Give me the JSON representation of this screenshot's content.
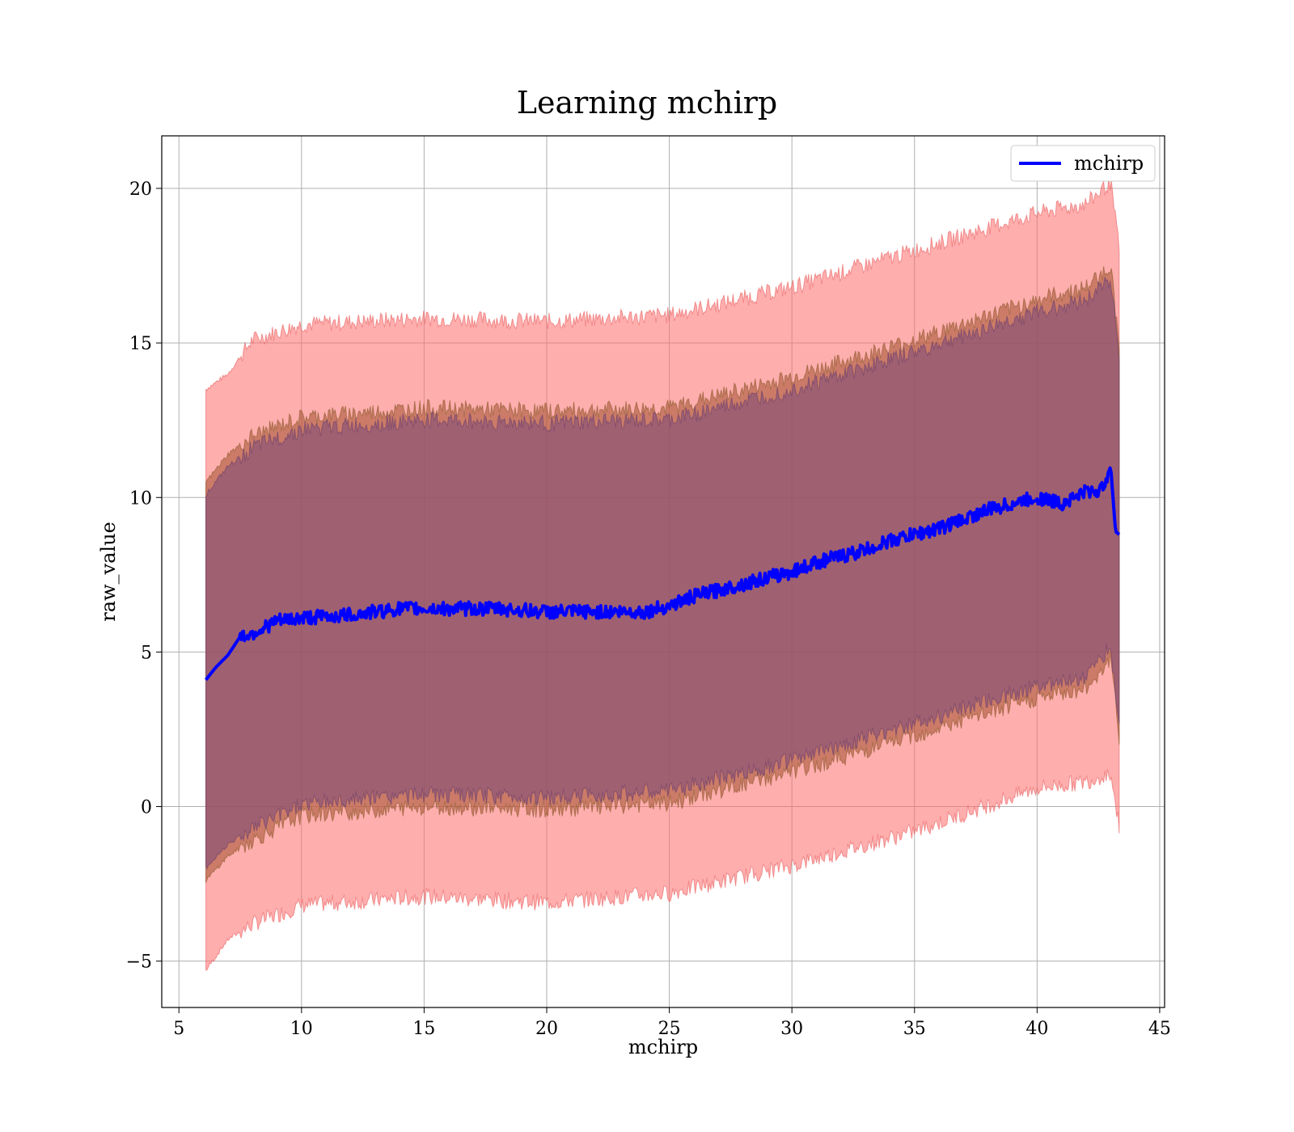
{
  "chart_data": {
    "type": "line",
    "title": "Learning mchirp",
    "xlabel": "mchirp",
    "ylabel": "raw_value",
    "xlim": [
      4.3,
      45.2
    ],
    "ylim": [
      -6.5,
      21.7
    ],
    "xticks": [
      5,
      10,
      15,
      20,
      25,
      30,
      35,
      40,
      45
    ],
    "yticks": [
      -5,
      0,
      5,
      10,
      15,
      20
    ],
    "xtick_labels": [
      "5",
      "10",
      "15",
      "20",
      "25",
      "30",
      "35",
      "40",
      "45"
    ],
    "ytick_labels": [
      "−5",
      "0",
      "5",
      "10",
      "15",
      "20"
    ],
    "grid": true,
    "legend_position": "top-right",
    "colors": {
      "line": "#0000ff",
      "band_outer": "#ff6b6b",
      "band_mid": "#a0522d",
      "band_inner": "#7b4a7b"
    },
    "series": [
      {
        "name": "mchirp",
        "x": [
          6.1,
          6.5,
          7.0,
          7.5,
          8.0,
          9.0,
          10.0,
          12.0,
          14.0,
          16.0,
          18.0,
          20.0,
          22.0,
          24.0,
          25.0,
          26.0,
          27.0,
          28.0,
          29.0,
          30.0,
          31.0,
          32.0,
          33.0,
          34.0,
          35.0,
          36.0,
          37.0,
          38.0,
          39.0,
          40.0,
          41.0,
          42.0,
          42.6,
          43.0,
          43.2,
          43.35
        ],
        "y": [
          4.1,
          4.5,
          4.9,
          5.5,
          5.6,
          6.0,
          6.1,
          6.2,
          6.4,
          6.4,
          6.4,
          6.3,
          6.3,
          6.3,
          6.5,
          6.8,
          7.0,
          7.2,
          7.4,
          7.6,
          7.9,
          8.1,
          8.3,
          8.6,
          8.8,
          9.0,
          9.3,
          9.6,
          9.8,
          10.0,
          9.8,
          10.2,
          10.2,
          11.0,
          8.9,
          8.8
        ]
      }
    ],
    "bands": [
      {
        "x": [
          6.1,
          7.0,
          8.0,
          10.0,
          15.0,
          20.0,
          25.0,
          30.0,
          35.0,
          40.0,
          42.0,
          43.0,
          43.35
        ],
        "upper": [
          13.5,
          14.0,
          15.1,
          15.6,
          15.8,
          15.7,
          15.9,
          16.8,
          18.0,
          19.2,
          19.5,
          20.2,
          18.0
        ],
        "lower": [
          -5.3,
          -4.3,
          -3.8,
          -3.2,
          -2.9,
          -3.1,
          -2.8,
          -1.9,
          -0.8,
          0.6,
          0.8,
          1.1,
          -0.7
        ]
      },
      {
        "x": [
          6.1,
          7.0,
          8.0,
          10.0,
          15.0,
          20.0,
          25.0,
          30.0,
          35.0,
          40.0,
          42.0,
          43.0,
          43.35
        ],
        "upper": [
          10.5,
          11.4,
          12.0,
          12.6,
          12.9,
          12.8,
          12.9,
          13.9,
          15.1,
          16.4,
          16.8,
          17.5,
          14.9
        ],
        "lower": [
          -2.4,
          -1.6,
          -1.1,
          -0.3,
          0.0,
          -0.1,
          0.1,
          1.1,
          2.3,
          3.5,
          3.8,
          4.8,
          2.2
        ]
      },
      {
        "x": [
          6.1,
          7.0,
          8.0,
          10.0,
          15.0,
          20.0,
          25.0,
          30.0,
          35.0,
          40.0,
          42.0,
          43.0,
          43.35
        ],
        "upper": [
          10.1,
          11.0,
          11.6,
          12.2,
          12.5,
          12.4,
          12.5,
          13.5,
          14.7,
          16.0,
          16.4,
          17.1,
          14.5
        ],
        "lower": [
          -2.0,
          -1.2,
          -0.7,
          0.1,
          0.4,
          0.3,
          0.5,
          1.5,
          2.7,
          3.9,
          4.2,
          5.2,
          2.6
        ]
      }
    ]
  }
}
